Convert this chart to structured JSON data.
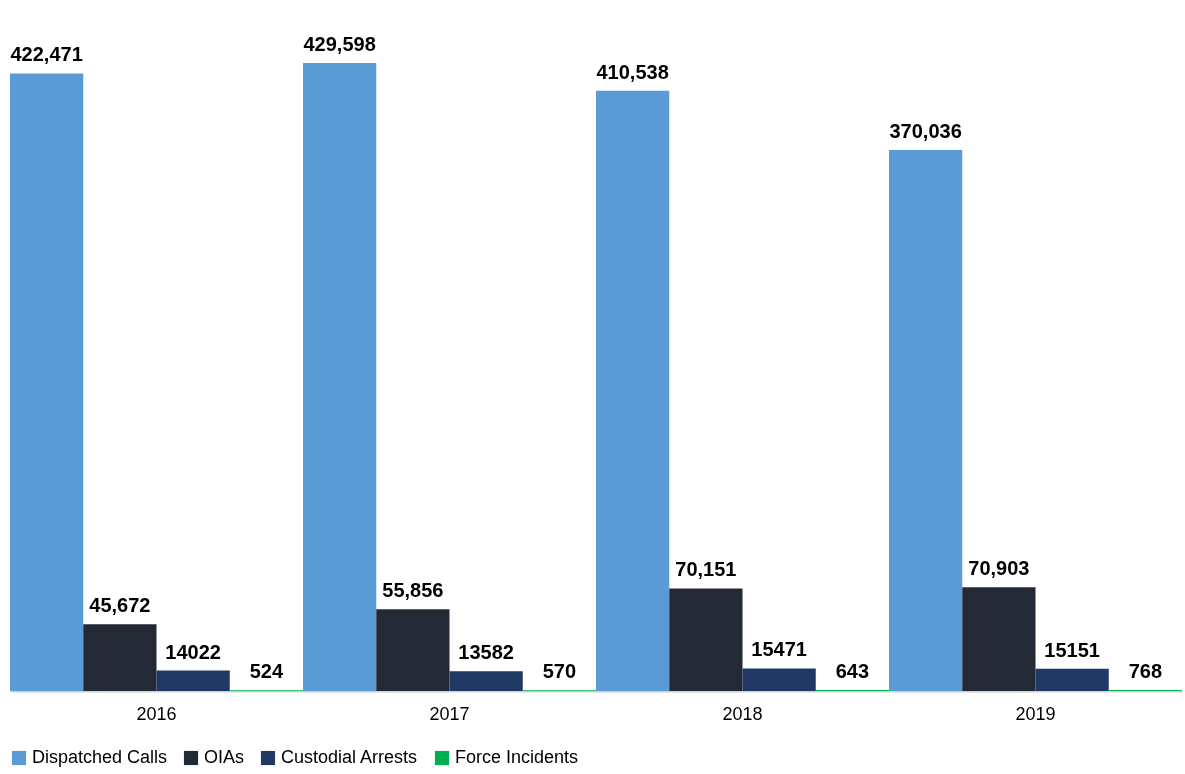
{
  "chart_data": {
    "type": "bar",
    "categories": [
      "2016",
      "2017",
      "2018",
      "2019"
    ],
    "series": [
      {
        "name": "Dispatched Calls",
        "color": "#5b9bd5",
        "values": [
          422471,
          429598,
          410538,
          370036
        ],
        "value_labels": [
          "422,471",
          "429,598",
          "410,538",
          "370,036"
        ]
      },
      {
        "name": "OIAs",
        "color": "#232a35",
        "values": [
          45672,
          55856,
          70151,
          70903
        ],
        "value_labels": [
          "45,672",
          "55,856",
          "70,151",
          "70,903"
        ]
      },
      {
        "name": "Custodial Arrests",
        "color": "#203864",
        "values": [
          14022,
          13582,
          15471,
          15151
        ],
        "value_labels": [
          "14022",
          "13582",
          "15471",
          "15151"
        ]
      },
      {
        "name": "Force Incidents",
        "color": "#00b050",
        "values": [
          524,
          570,
          643,
          768
        ],
        "value_labels": [
          "524",
          "570",
          "643",
          "768"
        ]
      }
    ],
    "legend": "bottom",
    "grid": false
  }
}
